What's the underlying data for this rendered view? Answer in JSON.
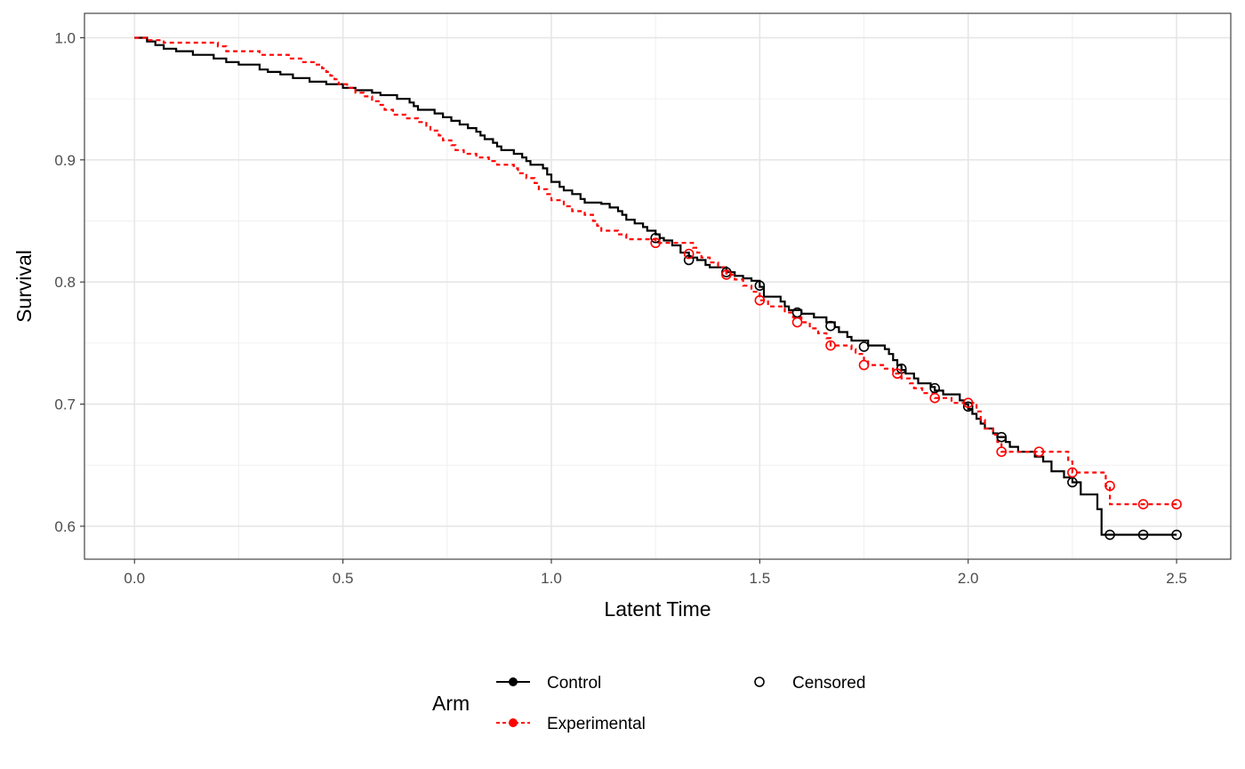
{
  "chart_data": {
    "type": "line",
    "subtype": "kaplan-meier step curve",
    "xlabel": "Latent Time",
    "ylabel": "Survival",
    "xlim": [
      -0.12,
      2.63
    ],
    "ylim": [
      0.573,
      1.02
    ],
    "x_ticks": [
      0.0,
      0.5,
      1.0,
      1.5,
      2.0,
      2.5
    ],
    "x_tick_labels": [
      "0.0",
      "0.5",
      "1.0",
      "1.5",
      "2.0",
      "2.5"
    ],
    "y_ticks": [
      0.6,
      0.7,
      0.8,
      0.9,
      1.0
    ],
    "y_tick_labels": [
      "0.6",
      "0.7",
      "0.8",
      "0.9",
      "1.0"
    ],
    "grid": true,
    "legend": {
      "title": "Arm",
      "placement": "bottom",
      "censored_label": "Censored"
    },
    "series": [
      {
        "name": "Control",
        "color": "#000000",
        "line_style": "solid",
        "steps": [
          [
            0.0,
            1.0
          ],
          [
            0.03,
            0.997
          ],
          [
            0.05,
            0.994
          ],
          [
            0.07,
            0.991
          ],
          [
            0.1,
            0.989
          ],
          [
            0.14,
            0.986
          ],
          [
            0.19,
            0.983
          ],
          [
            0.22,
            0.98
          ],
          [
            0.25,
            0.978
          ],
          [
            0.3,
            0.974
          ],
          [
            0.32,
            0.972
          ],
          [
            0.35,
            0.97
          ],
          [
            0.38,
            0.967
          ],
          [
            0.42,
            0.964
          ],
          [
            0.46,
            0.962
          ],
          [
            0.5,
            0.959
          ],
          [
            0.53,
            0.957
          ],
          [
            0.57,
            0.955
          ],
          [
            0.59,
            0.953
          ],
          [
            0.63,
            0.95
          ],
          [
            0.66,
            0.947
          ],
          [
            0.67,
            0.944
          ],
          [
            0.68,
            0.941
          ],
          [
            0.72,
            0.938
          ],
          [
            0.74,
            0.935
          ],
          [
            0.76,
            0.932
          ],
          [
            0.78,
            0.929
          ],
          [
            0.8,
            0.926
          ],
          [
            0.82,
            0.923
          ],
          [
            0.83,
            0.92
          ],
          [
            0.84,
            0.917
          ],
          [
            0.86,
            0.914
          ],
          [
            0.87,
            0.911
          ],
          [
            0.88,
            0.908
          ],
          [
            0.91,
            0.905
          ],
          [
            0.93,
            0.902
          ],
          [
            0.94,
            0.899
          ],
          [
            0.95,
            0.896
          ],
          [
            0.98,
            0.893
          ],
          [
            0.99,
            0.888
          ],
          [
            1.0,
            0.882
          ],
          [
            1.02,
            0.878
          ],
          [
            1.03,
            0.875
          ],
          [
            1.05,
            0.872
          ],
          [
            1.07,
            0.868
          ],
          [
            1.08,
            0.865
          ],
          [
            1.12,
            0.864
          ],
          [
            1.14,
            0.861
          ],
          [
            1.16,
            0.858
          ],
          [
            1.17,
            0.855
          ],
          [
            1.18,
            0.851
          ],
          [
            1.2,
            0.848
          ],
          [
            1.22,
            0.845
          ],
          [
            1.23,
            0.842
          ],
          [
            1.25,
            0.839
          ],
          [
            1.26,
            0.836
          ],
          [
            1.27,
            0.834
          ],
          [
            1.29,
            0.83
          ],
          [
            1.31,
            0.824
          ],
          [
            1.33,
            0.82
          ],
          [
            1.35,
            0.818
          ],
          [
            1.37,
            0.814
          ],
          [
            1.38,
            0.812
          ],
          [
            1.42,
            0.808
          ],
          [
            1.44,
            0.805
          ],
          [
            1.46,
            0.803
          ],
          [
            1.48,
            0.801
          ],
          [
            1.5,
            0.796
          ],
          [
            1.51,
            0.788
          ],
          [
            1.55,
            0.784
          ],
          [
            1.56,
            0.78
          ],
          [
            1.57,
            0.777
          ],
          [
            1.6,
            0.774
          ],
          [
            1.63,
            0.771
          ],
          [
            1.66,
            0.767
          ],
          [
            1.68,
            0.763
          ],
          [
            1.69,
            0.759
          ],
          [
            1.71,
            0.755
          ],
          [
            1.72,
            0.752
          ],
          [
            1.76,
            0.748
          ],
          [
            1.8,
            0.745
          ],
          [
            1.81,
            0.741
          ],
          [
            1.82,
            0.736
          ],
          [
            1.83,
            0.732
          ],
          [
            1.84,
            0.728
          ],
          [
            1.85,
            0.725
          ],
          [
            1.87,
            0.721
          ],
          [
            1.88,
            0.717
          ],
          [
            1.91,
            0.714
          ],
          [
            1.92,
            0.711
          ],
          [
            1.94,
            0.708
          ],
          [
            1.98,
            0.703
          ],
          [
            1.99,
            0.7
          ],
          [
            2.0,
            0.696
          ],
          [
            2.01,
            0.692
          ],
          [
            2.02,
            0.688
          ],
          [
            2.03,
            0.684
          ],
          [
            2.04,
            0.68
          ],
          [
            2.06,
            0.676
          ],
          [
            2.07,
            0.673
          ],
          [
            2.09,
            0.669
          ],
          [
            2.1,
            0.665
          ],
          [
            2.12,
            0.661
          ],
          [
            2.16,
            0.657
          ],
          [
            2.18,
            0.653
          ],
          [
            2.2,
            0.645
          ],
          [
            2.23,
            0.64
          ],
          [
            2.25,
            0.636
          ],
          [
            2.27,
            0.626
          ],
          [
            2.31,
            0.614
          ],
          [
            2.32,
            0.593
          ],
          [
            2.5,
            0.593
          ]
        ],
        "censored": [
          [
            1.25,
            0.836
          ],
          [
            1.33,
            0.818
          ],
          [
            1.42,
            0.808
          ],
          [
            1.5,
            0.797
          ],
          [
            1.59,
            0.775
          ],
          [
            1.67,
            0.764
          ],
          [
            1.75,
            0.747
          ],
          [
            1.84,
            0.729
          ],
          [
            1.92,
            0.713
          ],
          [
            2.0,
            0.698
          ],
          [
            2.08,
            0.673
          ],
          [
            2.25,
            0.636
          ],
          [
            2.34,
            0.593
          ],
          [
            2.42,
            0.593
          ],
          [
            2.5,
            0.593
          ]
        ]
      },
      {
        "name": "Experimental",
        "color": "#ff0000",
        "line_style": "dashed",
        "steps": [
          [
            0.0,
            1.0
          ],
          [
            0.03,
            0.998
          ],
          [
            0.07,
            0.996
          ],
          [
            0.2,
            0.993
          ],
          [
            0.22,
            0.989
          ],
          [
            0.3,
            0.986
          ],
          [
            0.37,
            0.983
          ],
          [
            0.4,
            0.98
          ],
          [
            0.43,
            0.978
          ],
          [
            0.45,
            0.975
          ],
          [
            0.46,
            0.972
          ],
          [
            0.47,
            0.969
          ],
          [
            0.48,
            0.966
          ],
          [
            0.49,
            0.962
          ],
          [
            0.51,
            0.959
          ],
          [
            0.53,
            0.955
          ],
          [
            0.55,
            0.952
          ],
          [
            0.57,
            0.948
          ],
          [
            0.59,
            0.945
          ],
          [
            0.6,
            0.941
          ],
          [
            0.62,
            0.937
          ],
          [
            0.65,
            0.934
          ],
          [
            0.68,
            0.931
          ],
          [
            0.7,
            0.928
          ],
          [
            0.71,
            0.924
          ],
          [
            0.73,
            0.92
          ],
          [
            0.74,
            0.916
          ],
          [
            0.76,
            0.912
          ],
          [
            0.77,
            0.908
          ],
          [
            0.79,
            0.905
          ],
          [
            0.82,
            0.902
          ],
          [
            0.85,
            0.899
          ],
          [
            0.87,
            0.896
          ],
          [
            0.91,
            0.893
          ],
          [
            0.92,
            0.889
          ],
          [
            0.94,
            0.885
          ],
          [
            0.96,
            0.881
          ],
          [
            0.97,
            0.876
          ],
          [
            0.99,
            0.872
          ],
          [
            1.0,
            0.867
          ],
          [
            1.03,
            0.862
          ],
          [
            1.05,
            0.858
          ],
          [
            1.08,
            0.855
          ],
          [
            1.1,
            0.85
          ],
          [
            1.11,
            0.846
          ],
          [
            1.12,
            0.842
          ],
          [
            1.16,
            0.839
          ],
          [
            1.18,
            0.835
          ],
          [
            1.25,
            0.832
          ],
          [
            1.34,
            0.828
          ],
          [
            1.35,
            0.824
          ],
          [
            1.36,
            0.82
          ],
          [
            1.38,
            0.816
          ],
          [
            1.4,
            0.812
          ],
          [
            1.42,
            0.806
          ],
          [
            1.44,
            0.802
          ],
          [
            1.46,
            0.797
          ],
          [
            1.48,
            0.792
          ],
          [
            1.5,
            0.785
          ],
          [
            1.52,
            0.78
          ],
          [
            1.56,
            0.775
          ],
          [
            1.58,
            0.771
          ],
          [
            1.6,
            0.767
          ],
          [
            1.62,
            0.762
          ],
          [
            1.64,
            0.758
          ],
          [
            1.66,
            0.754
          ],
          [
            1.67,
            0.748
          ],
          [
            1.72,
            0.745
          ],
          [
            1.73,
            0.741
          ],
          [
            1.75,
            0.736
          ],
          [
            1.76,
            0.732
          ],
          [
            1.8,
            0.729
          ],
          [
            1.82,
            0.725
          ],
          [
            1.84,
            0.721
          ],
          [
            1.86,
            0.717
          ],
          [
            1.87,
            0.713
          ],
          [
            1.89,
            0.709
          ],
          [
            1.92,
            0.705
          ],
          [
            1.96,
            0.701
          ],
          [
            2.0,
            0.701
          ],
          [
            2.02,
            0.694
          ],
          [
            2.03,
            0.687
          ],
          [
            2.04,
            0.68
          ],
          [
            2.06,
            0.675
          ],
          [
            2.07,
            0.669
          ],
          [
            2.08,
            0.661
          ],
          [
            2.17,
            0.661
          ],
          [
            2.24,
            0.653
          ],
          [
            2.25,
            0.644
          ],
          [
            2.33,
            0.633
          ],
          [
            2.34,
            0.618
          ],
          [
            2.5,
            0.618
          ]
        ],
        "censored": [
          [
            1.25,
            0.832
          ],
          [
            1.33,
            0.823
          ],
          [
            1.42,
            0.806
          ],
          [
            1.5,
            0.785
          ],
          [
            1.59,
            0.767
          ],
          [
            1.67,
            0.748
          ],
          [
            1.75,
            0.732
          ],
          [
            1.83,
            0.725
          ],
          [
            1.92,
            0.705
          ],
          [
            2.0,
            0.701
          ],
          [
            2.08,
            0.661
          ],
          [
            2.17,
            0.661
          ],
          [
            2.25,
            0.644
          ],
          [
            2.34,
            0.633
          ],
          [
            2.42,
            0.618
          ],
          [
            2.5,
            0.618
          ]
        ]
      }
    ]
  }
}
